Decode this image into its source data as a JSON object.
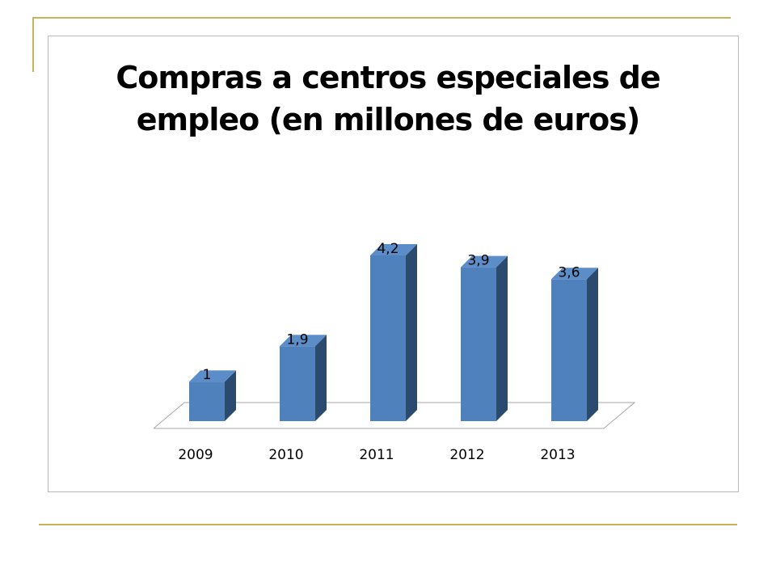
{
  "slide": {
    "accent_color": "#c8b25a",
    "frame_border_color": "#b9b9b9"
  },
  "chart_data": {
    "type": "bar",
    "style": "3d-column",
    "title_lines": [
      "Compras a centros especiales de",
      "empleo (en millones de euros)"
    ],
    "categories": [
      "2009",
      "2010",
      "2011",
      "2012",
      "2013"
    ],
    "values": [
      1,
      1.9,
      4.2,
      3.9,
      3.6
    ],
    "data_labels": [
      "1",
      "1,9",
      "4,2",
      "3,9",
      "3,6"
    ],
    "xlabel": "",
    "ylabel": "",
    "ylim": [
      0,
      4.2
    ],
    "grid": false,
    "legend": "none",
    "colors": {
      "bar_front": "#4f81bd",
      "bar_side": "#2b4a6d",
      "bar_top": "#5b8dc8",
      "floor_line": "#a6a6a6"
    }
  }
}
